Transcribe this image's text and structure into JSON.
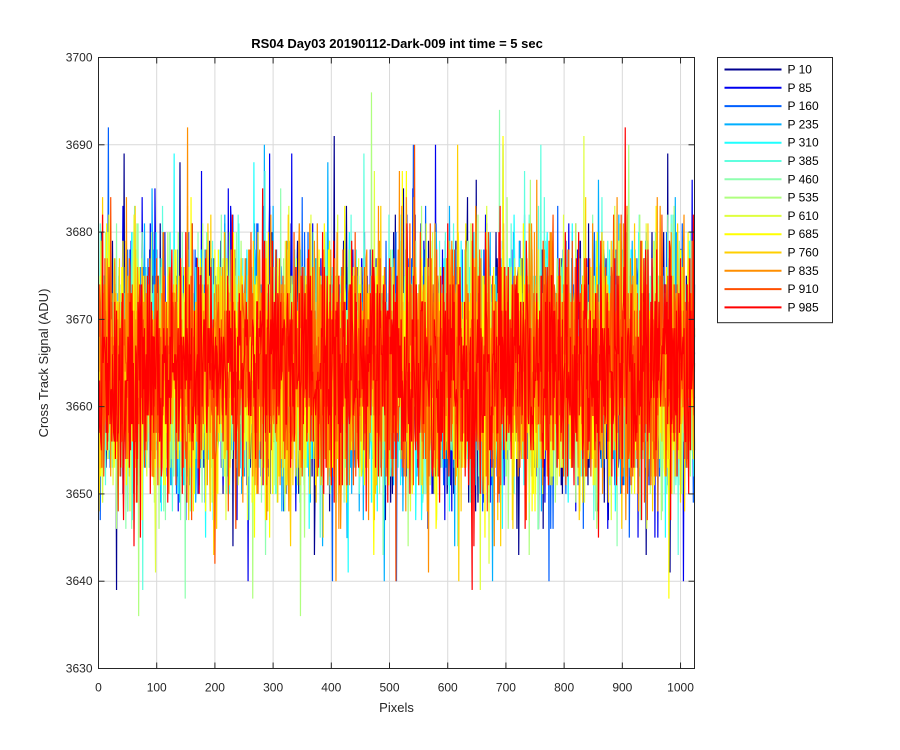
{
  "chart_data": {
    "type": "line",
    "title": "RS04 Day03 20190112-Dark-009 int time = 5 sec",
    "xlabel": "Pixels",
    "ylabel": "Cross Track Signal (ADU)",
    "xlim": [
      0,
      1024
    ],
    "ylim": [
      3630,
      3700
    ],
    "xticks": [
      0,
      100,
      200,
      300,
      400,
      500,
      600,
      700,
      800,
      900,
      1000
    ],
    "yticks": [
      3630,
      3640,
      3650,
      3660,
      3670,
      3680,
      3690,
      3700
    ],
    "grid": true,
    "legend_position": "outside-top-right",
    "x_start": 1,
    "x_end": 1024,
    "series_center": 3664.5,
    "series_noise_std": 7,
    "series": [
      {
        "name": "P 10",
        "color": "#00008f",
        "min": 3639,
        "max": 3691
      },
      {
        "name": "P 85",
        "color": "#0000ef",
        "min": 3640,
        "max": 3690
      },
      {
        "name": "P 160",
        "color": "#005fff",
        "min": 3640,
        "max": 3692
      },
      {
        "name": "P 235",
        "color": "#00afff",
        "min": 3640,
        "max": 3690
      },
      {
        "name": "P 310",
        "color": "#1fffff",
        "min": 3641,
        "max": 3689
      },
      {
        "name": "P 385",
        "color": "#5fffdf",
        "min": 3639,
        "max": 3690
      },
      {
        "name": "P 460",
        "color": "#8fffaf",
        "min": 3638,
        "max": 3694
      },
      {
        "name": "P 535",
        "color": "#afff7f",
        "min": 3636,
        "max": 3696
      },
      {
        "name": "P 610",
        "color": "#dfff3f",
        "min": 3639,
        "max": 3691
      },
      {
        "name": "P 685",
        "color": "#ffff00",
        "min": 3638,
        "max": 3691
      },
      {
        "name": "P 760",
        "color": "#ffcf00",
        "min": 3640,
        "max": 3690
      },
      {
        "name": "P 835",
        "color": "#ff8f00",
        "min": 3640,
        "max": 3692
      },
      {
        "name": "P 910",
        "color": "#ff4f00",
        "min": 3640,
        "max": 3690
      },
      {
        "name": "P 985",
        "color": "#ff0000",
        "min": 3639,
        "max": 3692
      }
    ]
  }
}
